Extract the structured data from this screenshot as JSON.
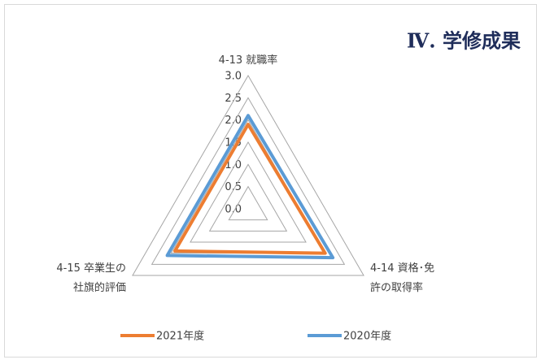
{
  "chart_data": {
    "type": "radar",
    "title": "Ⅳ. 学修成果",
    "categories": [
      "4-13 就職率",
      "4-14 資格･免\n許の取得率",
      "4-15 卒業生の\n社旗的評価"
    ],
    "series": [
      {
        "name": "2021年度",
        "color": "#ed7d31",
        "values": [
          1.9,
          2.0,
          1.9
        ]
      },
      {
        "name": "2020年度",
        "color": "#5b9bd5",
        "values": [
          2.1,
          2.2,
          2.1
        ]
      }
    ],
    "ylim": [
      0,
      3
    ],
    "yticks": [
      {
        "value": 0,
        "label": "0.0"
      },
      {
        "value": 0.5,
        "label": "0.5"
      },
      {
        "value": 1,
        "label": "1.0"
      },
      {
        "value": 1.5,
        "label": "1.5"
      },
      {
        "value": 2,
        "label": "2.0"
      },
      {
        "value": 2.5,
        "label": "2.5"
      },
      {
        "value": 3,
        "label": "3.0"
      }
    ],
    "grid": true,
    "legend": "bottom"
  }
}
